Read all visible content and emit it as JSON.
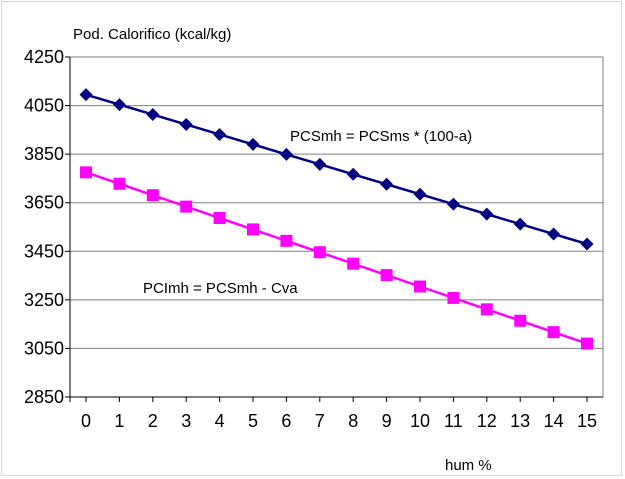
{
  "chart_data": {
    "type": "line",
    "ylabel": "Pod. Calorifico  (kcal/kg)",
    "xlabel": "hum %",
    "x": [
      0,
      1,
      2,
      3,
      4,
      5,
      6,
      7,
      8,
      9,
      10,
      11,
      12,
      13,
      14,
      15
    ],
    "ylim": [
      2850,
      4250
    ],
    "yticks": [
      2850,
      3050,
      3250,
      3450,
      3650,
      3850,
      4050,
      4250
    ],
    "grid": true,
    "series": [
      {
        "marker": "diamond",
        "color": "#000080",
        "values": [
          4095,
          4054,
          4013,
          3972,
          3931,
          3890,
          3849,
          3808,
          3767,
          3726,
          3685,
          3644,
          3603,
          3562,
          3521,
          3480
        ]
      },
      {
        "marker": "square",
        "color": "#ff00ff",
        "values": [
          3775,
          3728,
          3681,
          3634,
          3587,
          3540,
          3493,
          3446,
          3399,
          3352,
          3305,
          3258,
          3211,
          3164,
          3117,
          3070
        ]
      }
    ],
    "annotations": [
      {
        "text": "PCSmh = PCSms * (100-a)",
        "series": 0
      },
      {
        "text": "PCImh = PCSmh - Cva",
        "series": 1
      }
    ]
  }
}
